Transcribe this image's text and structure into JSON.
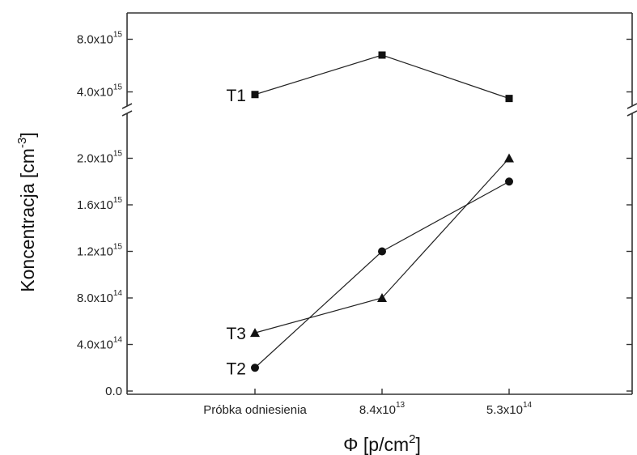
{
  "chart_data": {
    "type": "line",
    "title": "",
    "xlabel": {
      "base": "Φ [p/cm",
      "sup": "2",
      "tail": "]"
    },
    "ylabel": {
      "base": "Koncentracja [cm",
      "sup": "-3",
      "tail": "]"
    },
    "categories": [
      {
        "base": "Próbka odniesienia",
        "sup": ""
      },
      {
        "base": "8.4x10",
        "sup": "13"
      },
      {
        "base": "5.3x10",
        "sup": "14"
      }
    ],
    "y_axis": {
      "broken": true,
      "lower_range": [
        0,
        2400000000000000.0
      ],
      "upper_range": [
        2800000000000000.0,
        1e+16
      ],
      "ticks": [
        {
          "value": 0,
          "base": "0.0",
          "sup": ""
        },
        {
          "value": 400000000000000.0,
          "base": "4.0x10",
          "sup": "14"
        },
        {
          "value": 800000000000000.0,
          "base": "8.0x10",
          "sup": "14"
        },
        {
          "value": 1200000000000000.0,
          "base": "1.2x10",
          "sup": "15"
        },
        {
          "value": 1600000000000000.0,
          "base": "1.6x10",
          "sup": "15"
        },
        {
          "value": 2000000000000000.0,
          "base": "2.0x10",
          "sup": "15"
        },
        {
          "value": 4000000000000000.0,
          "base": "4.0x10",
          "sup": "15"
        },
        {
          "value": 8000000000000000.0,
          "base": "8.0x10",
          "sup": "15"
        }
      ]
    },
    "series": [
      {
        "name": "T1",
        "marker": "square",
        "values": [
          3800000000000000.0,
          6800000000000000.0,
          3500000000000000.0
        ]
      },
      {
        "name": "T2",
        "marker": "circle",
        "values": [
          200000000000000.0,
          1200000000000000.0,
          1800000000000000.0
        ]
      },
      {
        "name": "T3",
        "marker": "triangle",
        "values": [
          500000000000000.0,
          800000000000000.0,
          2000000000000000.0
        ]
      }
    ],
    "grid": false,
    "legend": "none"
  }
}
